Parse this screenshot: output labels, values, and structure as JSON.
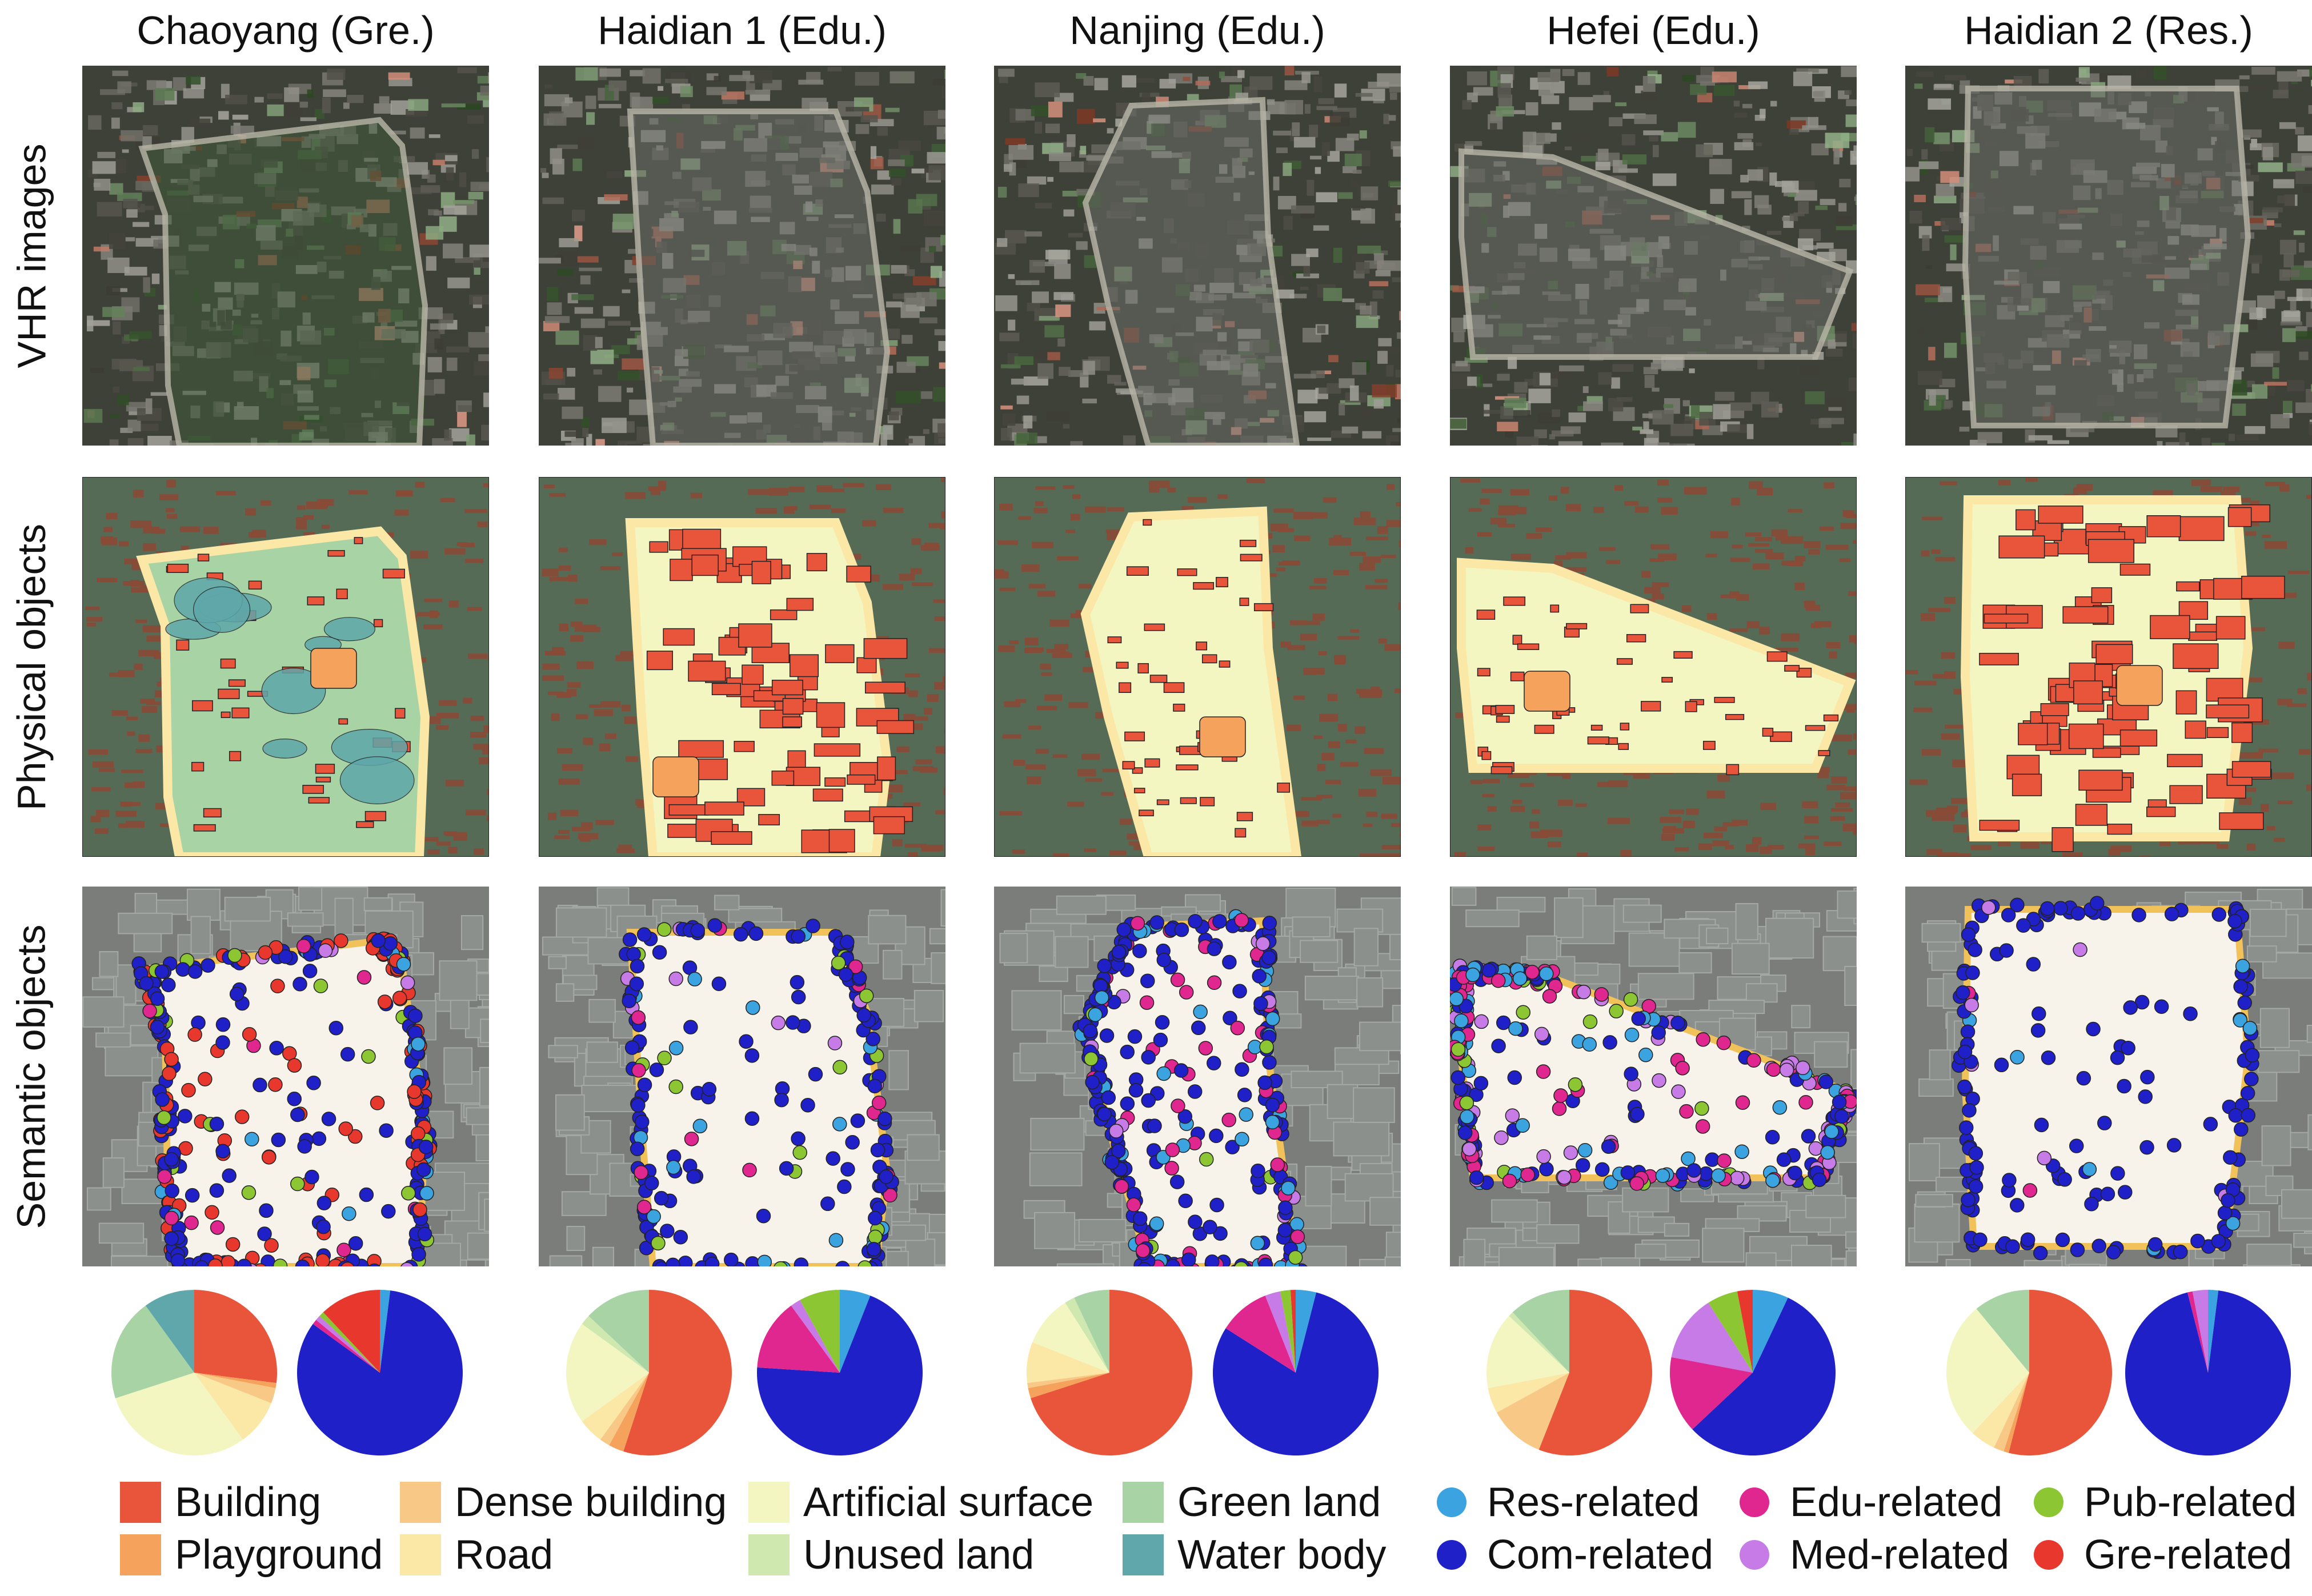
{
  "columns": [
    {
      "title": "Chaoyang (Gre.)"
    },
    {
      "title": "Haidian 1 (Edu.)"
    },
    {
      "title": "Nanjing (Edu.)"
    },
    {
      "title": "Hefei (Edu.)"
    },
    {
      "title": "Haidian 2 (Res.)"
    }
  ],
  "rows": [
    {
      "label": "VHR images"
    },
    {
      "label": "Physical objects"
    },
    {
      "label": "Semantic objects"
    }
  ],
  "physical_legend": [
    {
      "label": "Building",
      "color": "#E8553A"
    },
    {
      "label": "Playground",
      "color": "#F5A35C"
    },
    {
      "label": "Dense building",
      "color": "#F7C886"
    },
    {
      "label": "Road",
      "color": "#FBE7A6"
    },
    {
      "label": "Artificial surface",
      "color": "#F4F6C2"
    },
    {
      "label": "Unused land",
      "color": "#CFE8B0"
    },
    {
      "label": "Green land",
      "color": "#A7D3A5"
    },
    {
      "label": "Water body",
      "color": "#5FA7AA"
    }
  ],
  "semantic_legend": [
    {
      "label": "Res-related",
      "color": "#3BA3E0"
    },
    {
      "label": "Com-related",
      "color": "#2020C8"
    },
    {
      "label": "Edu-related",
      "color": "#E0268F"
    },
    {
      "label": "Med-related",
      "color": "#C77BE6"
    },
    {
      "label": "Pub-related",
      "color": "#8DC633"
    },
    {
      "label": "Gre-related",
      "color": "#E8382E"
    }
  ],
  "chart_data": [
    {
      "type": "pie",
      "region": "Chaoyang (Gre.)",
      "kind": "physical",
      "categories": [
        "Building",
        "Playground",
        "Dense building",
        "Road",
        "Artificial surface",
        "Unused land",
        "Green land",
        "Water body"
      ],
      "values": [
        27,
        1,
        3,
        9,
        30,
        0,
        20,
        10
      ]
    },
    {
      "type": "pie",
      "region": "Chaoyang (Gre.)",
      "kind": "semantic",
      "categories": [
        "Res-related",
        "Com-related",
        "Edu-related",
        "Med-related",
        "Pub-related",
        "Gre-related"
      ],
      "values": [
        2,
        83,
        1,
        1,
        1,
        12
      ]
    },
    {
      "type": "pie",
      "region": "Haidian 1 (Edu.)",
      "kind": "physical",
      "categories": [
        "Building",
        "Playground",
        "Dense building",
        "Road",
        "Artificial surface",
        "Unused land",
        "Green land",
        "Water body"
      ],
      "values": [
        55,
        3,
        2,
        5,
        20,
        2,
        13,
        0
      ]
    },
    {
      "type": "pie",
      "region": "Haidian 1 (Edu.)",
      "kind": "semantic",
      "categories": [
        "Res-related",
        "Com-related",
        "Edu-related",
        "Med-related",
        "Pub-related",
        "Gre-related"
      ],
      "values": [
        6,
        70,
        14,
        2,
        8,
        0
      ]
    },
    {
      "type": "pie",
      "region": "Nanjing (Edu.)",
      "kind": "physical",
      "categories": [
        "Building",
        "Playground",
        "Dense building",
        "Road",
        "Artificial surface",
        "Unused land",
        "Green land",
        "Water body"
      ],
      "values": [
        70,
        2,
        1,
        8,
        10,
        2,
        7,
        0
      ]
    },
    {
      "type": "pie",
      "region": "Nanjing (Edu.)",
      "kind": "semantic",
      "categories": [
        "Res-related",
        "Com-related",
        "Edu-related",
        "Med-related",
        "Pub-related",
        "Gre-related"
      ],
      "values": [
        4,
        80,
        10,
        3,
        2,
        1
      ]
    },
    {
      "type": "pie",
      "region": "Hefei (Edu.)",
      "kind": "physical",
      "categories": [
        "Building",
        "Playground",
        "Dense building",
        "Road",
        "Artificial surface",
        "Unused land",
        "Green land",
        "Water body"
      ],
      "values": [
        56,
        0,
        11,
        5,
        15,
        1,
        12,
        0
      ]
    },
    {
      "type": "pie",
      "region": "Hefei (Edu.)",
      "kind": "semantic",
      "categories": [
        "Res-related",
        "Com-related",
        "Edu-related",
        "Med-related",
        "Pub-related",
        "Gre-related"
      ],
      "values": [
        7,
        56,
        15,
        13,
        6,
        3
      ]
    },
    {
      "type": "pie",
      "region": "Haidian 2 (Res.)",
      "kind": "physical",
      "categories": [
        "Building",
        "Playground",
        "Dense building",
        "Road",
        "Artificial surface",
        "Unused land",
        "Green land",
        "Water body"
      ],
      "values": [
        54,
        1,
        2,
        5,
        27,
        0,
        11,
        0
      ]
    },
    {
      "type": "pie",
      "region": "Haidian 2 (Res.)",
      "kind": "semantic",
      "categories": [
        "Res-related",
        "Com-related",
        "Edu-related",
        "Med-related",
        "Pub-related",
        "Gre-related"
      ],
      "values": [
        2,
        94,
        1,
        3,
        0,
        0
      ]
    }
  ]
}
